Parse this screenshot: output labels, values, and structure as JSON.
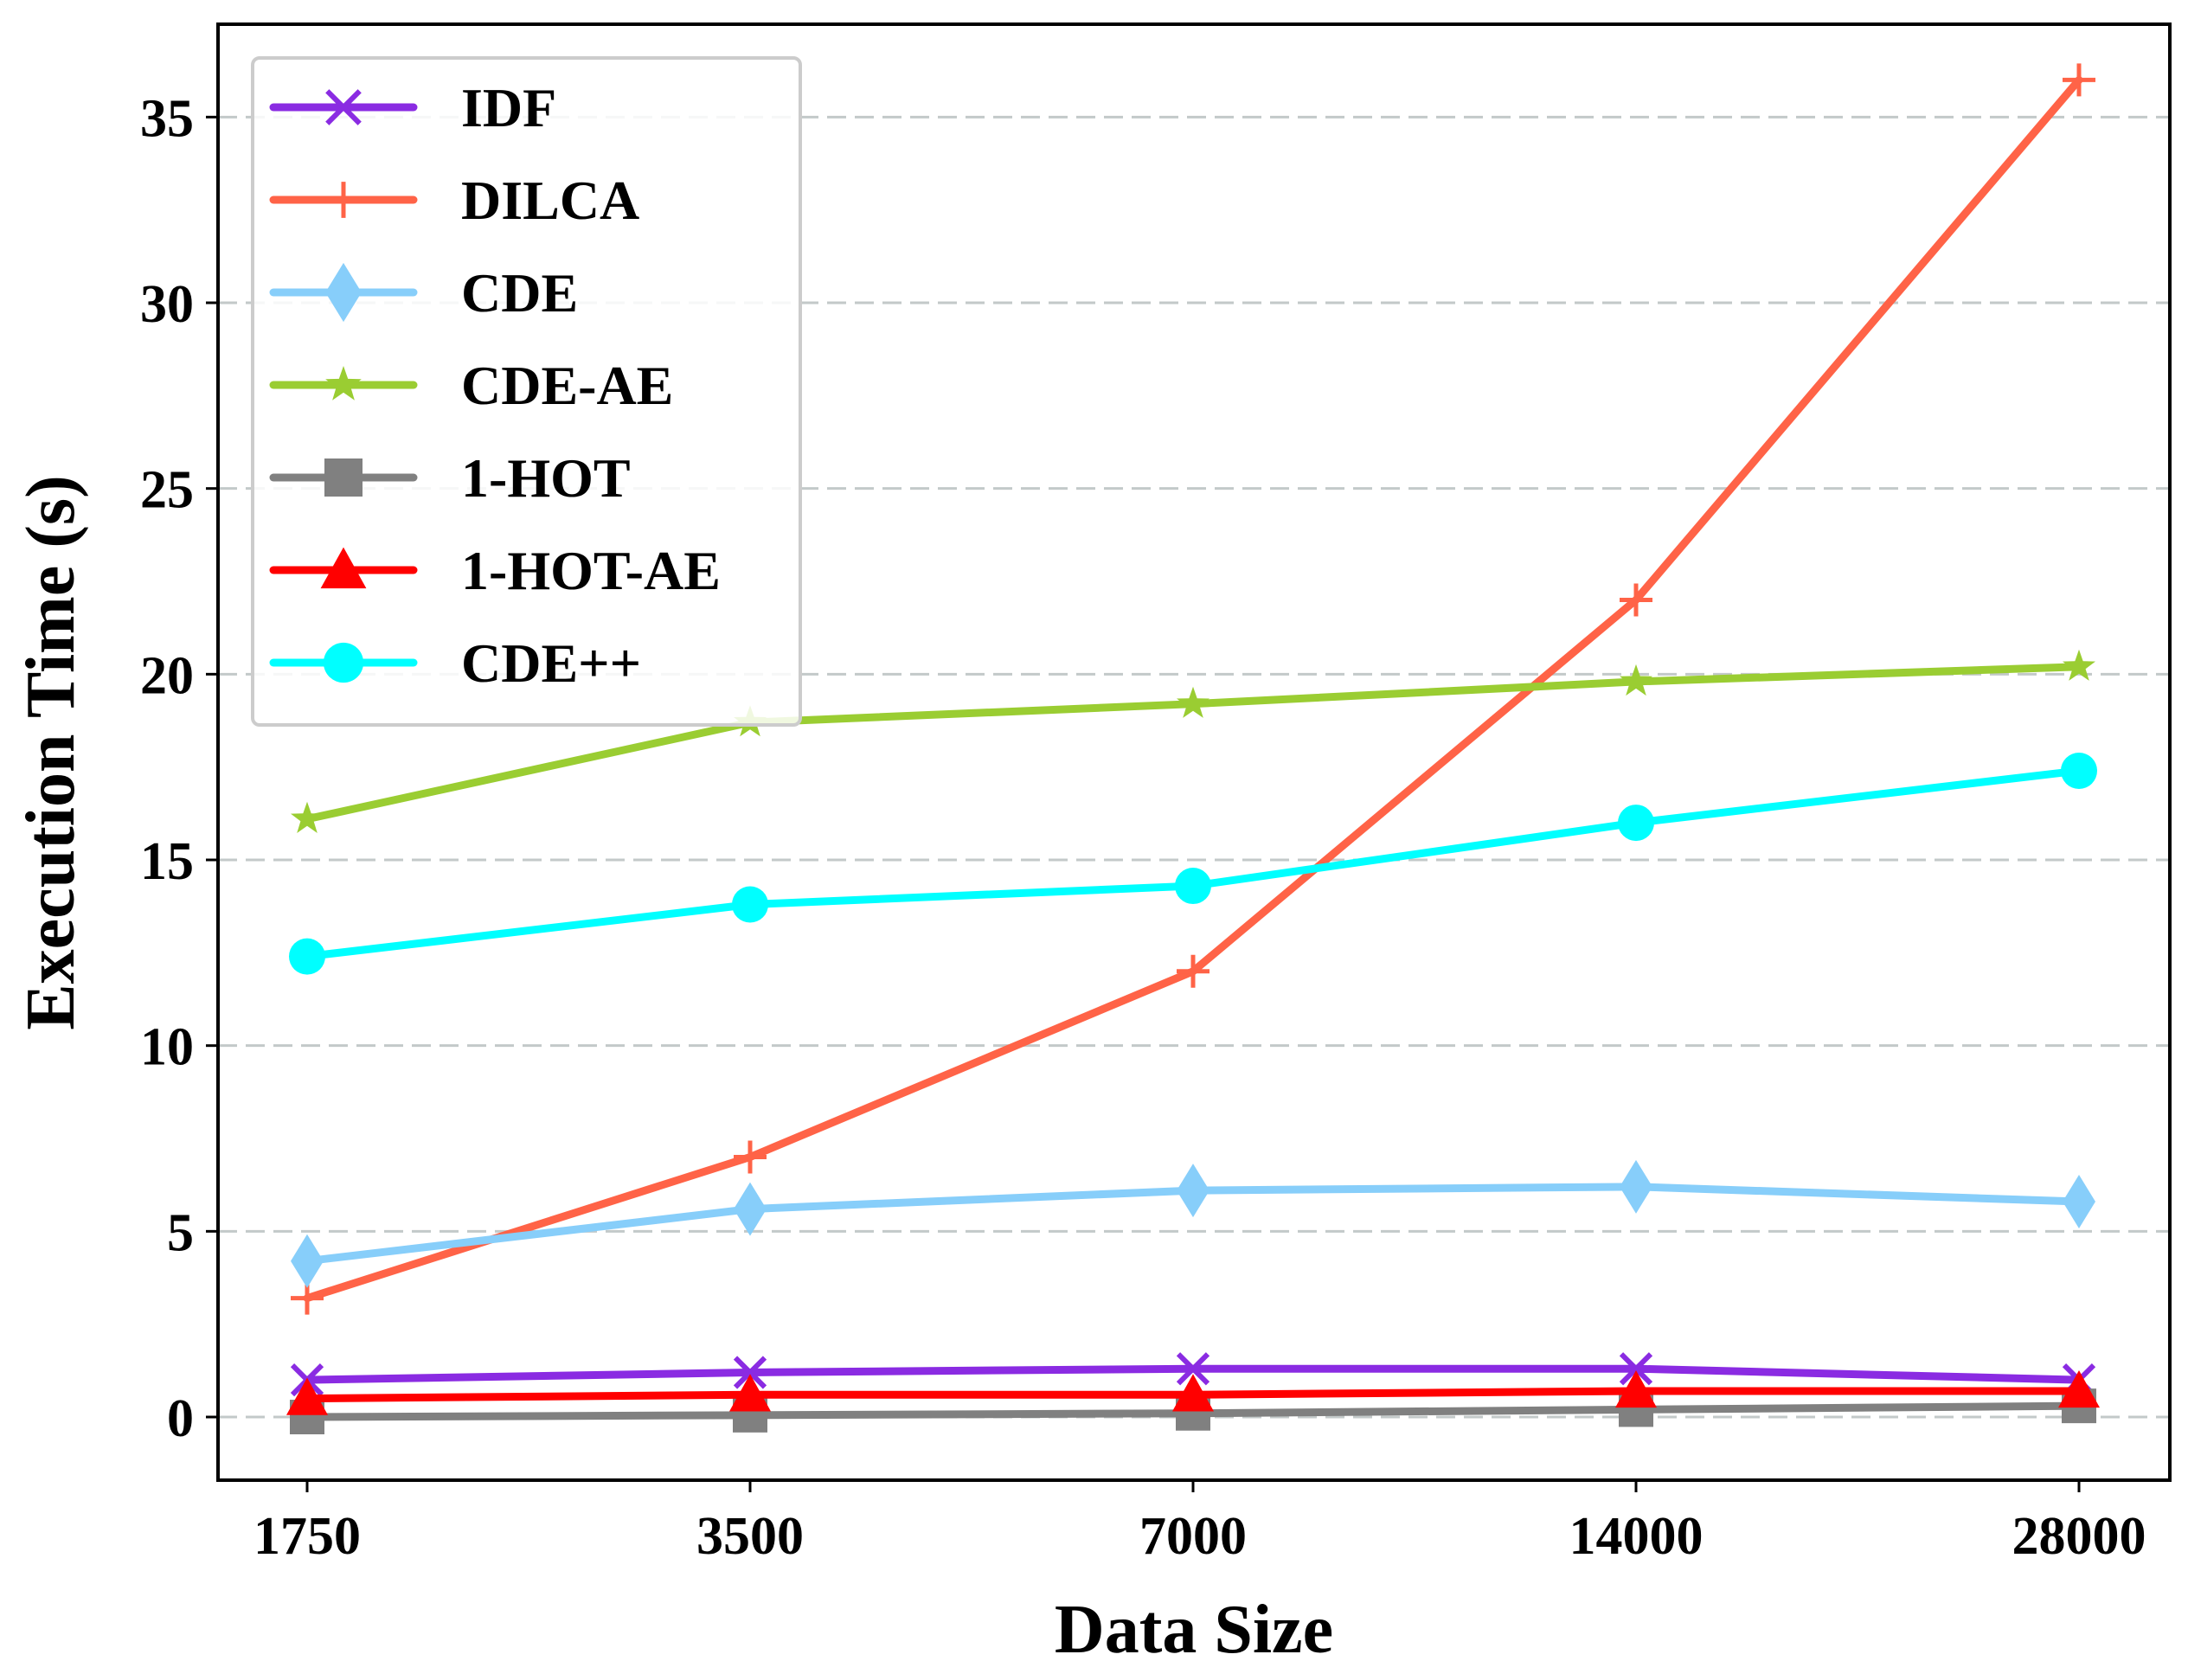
{
  "chart_data": {
    "type": "line",
    "title": "",
    "xlabel": "Data Size",
    "ylabel": "Execution Time (s)",
    "categories": [
      "1750",
      "3500",
      "7000",
      "14000",
      "28000"
    ],
    "ylim": [
      -1.7,
      37.5
    ],
    "yticks": [
      "0",
      "5",
      "10",
      "15",
      "20",
      "25",
      "30",
      "35"
    ],
    "grid": "horizontal dashed",
    "legend_position": "top-left",
    "series": [
      {
        "name": "IDF",
        "color": "#8a2be2",
        "marker": "x",
        "values": [
          1.0,
          1.2,
          1.3,
          1.3,
          1.0
        ]
      },
      {
        "name": "DILCA",
        "color": "#ff6347",
        "marker": "plus",
        "values": [
          3.2,
          7.0,
          12.0,
          22.0,
          36.0
        ]
      },
      {
        "name": "CDE",
        "color": "#87cefa",
        "marker": "thin-diamond",
        "values": [
          4.2,
          5.6,
          6.1,
          6.2,
          5.8
        ]
      },
      {
        "name": "CDE-AE",
        "color": "#9acd32",
        "marker": "star",
        "values": [
          16.1,
          18.7,
          19.2,
          19.8,
          20.2
        ]
      },
      {
        "name": "1-HOT",
        "color": "#808080",
        "marker": "square",
        "values": [
          0.0,
          0.05,
          0.1,
          0.2,
          0.3
        ]
      },
      {
        "name": "1-HOT-AE",
        "color": "#ff0000",
        "marker": "triangle",
        "values": [
          0.5,
          0.6,
          0.6,
          0.7,
          0.7
        ]
      },
      {
        "name": "CDE++",
        "color": "#00ffff",
        "marker": "circle",
        "values": [
          12.4,
          13.8,
          14.3,
          16.0,
          17.4
        ]
      }
    ]
  }
}
